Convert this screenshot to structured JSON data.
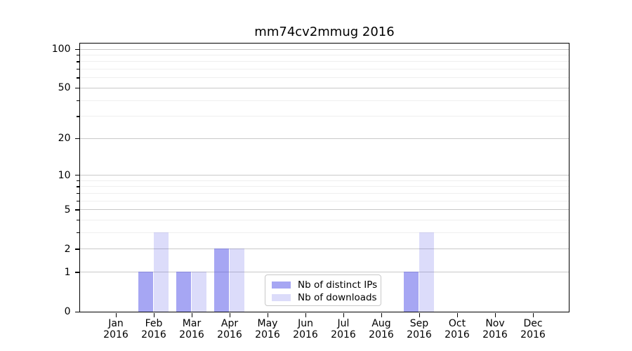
{
  "chart_data": {
    "type": "bar",
    "title": "mm74cv2mmug 2016",
    "categories": [
      "Jan",
      "Feb",
      "Mar",
      "Apr",
      "May",
      "Jun",
      "Jul",
      "Aug",
      "Sep",
      "Oct",
      "Nov",
      "Dec"
    ],
    "year": "2016",
    "series": [
      {
        "name": "Nb of distinct IPs",
        "values": [
          0,
          1,
          1,
          2,
          0,
          0,
          0,
          0,
          1,
          0,
          0,
          0
        ],
        "color": "rgba(70,70,230,0.48)"
      },
      {
        "name": "Nb of downloads",
        "values": [
          0,
          3,
          1,
          2,
          0,
          0,
          0,
          0,
          3,
          0,
          0,
          0
        ],
        "color": "rgba(70,70,230,0.19)"
      }
    ],
    "yticks": [
      0,
      1,
      2,
      5,
      10,
      20,
      50,
      100
    ],
    "minor_grid_values": [
      3,
      4,
      6,
      7,
      8,
      9,
      30,
      40,
      60,
      70,
      80,
      90
    ],
    "yscale": "log1p",
    "ylim": [
      0,
      110.5
    ],
    "xlabel": "",
    "ylabel": "",
    "grid": true,
    "legend_position": "lower center"
  },
  "colors": {
    "background": "#ffffff",
    "axis": "#000000",
    "grid_major": "#c9c9c9",
    "grid_minor": "#efefef",
    "legend_border": "#c8c8c8",
    "text": "#000000"
  }
}
